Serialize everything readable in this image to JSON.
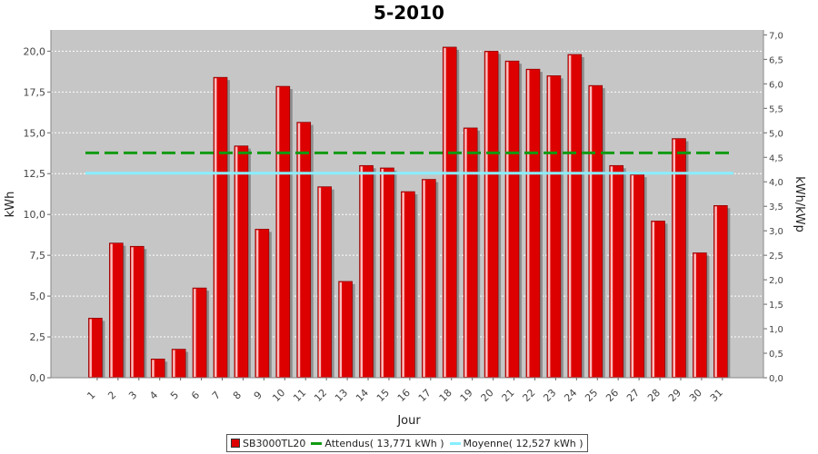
{
  "chart_data": {
    "type": "bar",
    "title": "5-2010",
    "xlabel": "Jour",
    "ylabel": "kWh",
    "y2label": "kWh/kWp",
    "categories": [
      "1",
      "2",
      "3",
      "4",
      "5",
      "6",
      "7",
      "8",
      "9",
      "10",
      "11",
      "12",
      "13",
      "14",
      "15",
      "16",
      "17",
      "18",
      "19",
      "20",
      "21",
      "22",
      "23",
      "24",
      "25",
      "26",
      "27",
      "28",
      "29",
      "30",
      "31"
    ],
    "series": [
      {
        "name": "SB3000TL20",
        "color": "#dd0000",
        "values": [
          3.65,
          8.25,
          8.05,
          1.15,
          1.75,
          5.5,
          18.4,
          14.2,
          9.1,
          17.85,
          15.65,
          11.7,
          5.9,
          13.0,
          12.85,
          11.4,
          12.15,
          20.25,
          15.3,
          20.0,
          19.4,
          18.9,
          18.5,
          19.8,
          17.9,
          13.0,
          12.45,
          9.6,
          14.65,
          7.65,
          10.55
        ]
      }
    ],
    "reference_lines": [
      {
        "name": "Attendus( 13,771 kWh )",
        "value": 13.771,
        "color": "#119a11",
        "style": "dashed"
      },
      {
        "name": "Moyenne( 12,527 kWh )",
        "value": 12.527,
        "color": "#88eeff",
        "style": "solid"
      }
    ],
    "ylim": [
      0,
      21.3
    ],
    "yticks": [
      "0,0",
      "2,5",
      "5,0",
      "7,5",
      "10,0",
      "12,5",
      "15,0",
      "17,5",
      "20,0"
    ],
    "y2lim": [
      0,
      7.1
    ],
    "y2ticks": [
      "0,0",
      "0,5",
      "1,0",
      "1,5",
      "2,0",
      "2,5",
      "3,0",
      "3,5",
      "4,0",
      "4,5",
      "5,0",
      "5,5",
      "6,0",
      "6,5",
      "7,0"
    ],
    "grid": true,
    "legend_position": "bottom"
  }
}
